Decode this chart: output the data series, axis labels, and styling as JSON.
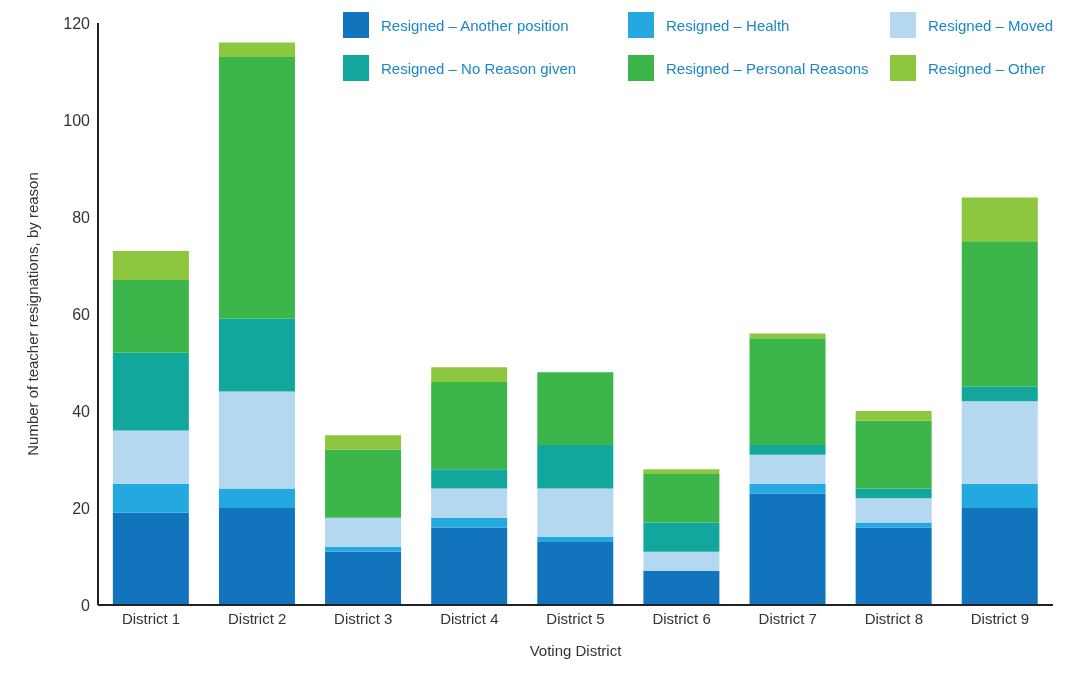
{
  "chart_data": {
    "type": "bar",
    "stacked": true,
    "xlabel": "Voting District",
    "ylabel": "Number of teacher resignations, by reason",
    "categories": [
      "District 1",
      "District 2",
      "District 3",
      "District 4",
      "District 5",
      "District 6",
      "District 7",
      "District 8",
      "District 9"
    ],
    "series": [
      {
        "name": "Resigned – Another position",
        "color": "#1174bc",
        "values": [
          19,
          20,
          11,
          16,
          13,
          7,
          23,
          16,
          20
        ]
      },
      {
        "name": "Resigned – Health",
        "color": "#24a8e0",
        "values": [
          6,
          4,
          1,
          2,
          1,
          0,
          2,
          1,
          5
        ]
      },
      {
        "name": "Resigned – Moved",
        "color": "#b3d8f0",
        "values": [
          11,
          20,
          6,
          6,
          10,
          4,
          6,
          5,
          17
        ]
      },
      {
        "name": "Resigned – No Reason given",
        "color": "#12a79d",
        "values": [
          16,
          15,
          0,
          4,
          9,
          6,
          2,
          2,
          3
        ]
      },
      {
        "name": "Resigned – Personal Reasons",
        "color": "#3cb54a",
        "values": [
          15,
          54,
          14,
          18,
          15,
          10,
          22,
          14,
          30
        ]
      },
      {
        "name": "Resigned – Other",
        "color": "#8dc63f",
        "values": [
          6,
          3,
          3,
          3,
          0,
          1,
          1,
          2,
          9
        ]
      }
    ],
    "ylim": [
      0,
      120
    ],
    "yticks": [
      0,
      20,
      40,
      60,
      80,
      100,
      120
    ],
    "grid": false,
    "legend": "top right"
  }
}
